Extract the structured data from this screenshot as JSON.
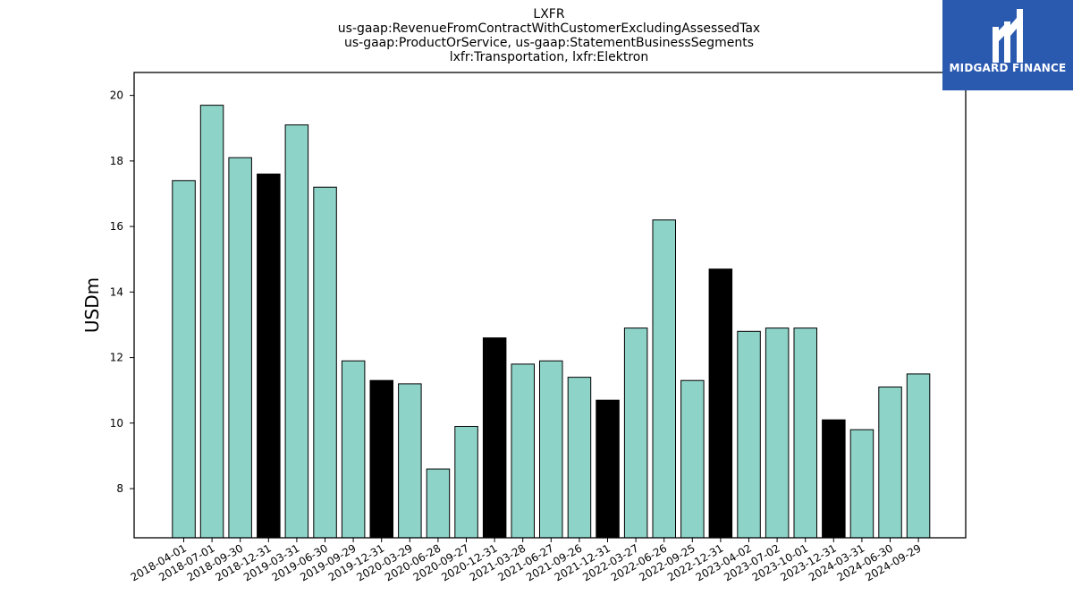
{
  "logo": {
    "text": "MIDGARD FINANCE",
    "background": "#2a59b0"
  },
  "chart_data": {
    "type": "bar",
    "title_lines": [
      "LXFR",
      "us-gaap:RevenueFromContractWithCustomerExcludingAssessedTax",
      "us-gaap:ProductOrService, us-gaap:StatementBusinessSegments",
      "lxfr:Transportation, lxfr:Elektron"
    ],
    "xlabel": "",
    "ylabel": "USDm",
    "ylim": [
      6.5,
      20.7
    ],
    "yticks": [
      8,
      10,
      12,
      14,
      16,
      18,
      20
    ],
    "grid": false,
    "colors": {
      "quarter": "#8dd3c7",
      "year_end": "#000000",
      "edge": "#000000"
    },
    "categories": [
      "2018-04-01",
      "2018-07-01",
      "2018-09-30",
      "2018-12-31",
      "2019-03-31",
      "2019-06-30",
      "2019-09-29",
      "2019-12-31",
      "2020-03-29",
      "2020-06-28",
      "2020-09-27",
      "2020-12-31",
      "2021-03-28",
      "2021-06-27",
      "2021-09-26",
      "2021-12-31",
      "2022-03-27",
      "2022-06-26",
      "2022-09-25",
      "2022-12-31",
      "2023-04-02",
      "2023-07-02",
      "2023-10-01",
      "2023-12-31",
      "2024-03-31",
      "2024-06-30",
      "2024-09-29"
    ],
    "values": [
      17.4,
      19.7,
      18.1,
      17.6,
      19.1,
      17.2,
      11.9,
      11.3,
      11.2,
      8.6,
      9.9,
      12.6,
      11.8,
      11.9,
      11.4,
      10.7,
      12.9,
      16.2,
      11.3,
      14.7,
      12.8,
      12.9,
      12.9,
      10.1,
      9.8,
      11.1,
      11.5
    ],
    "year_end": [
      false,
      false,
      false,
      true,
      false,
      false,
      false,
      true,
      false,
      false,
      false,
      true,
      false,
      false,
      false,
      true,
      false,
      false,
      false,
      true,
      false,
      false,
      false,
      true,
      false,
      false,
      false
    ]
  }
}
